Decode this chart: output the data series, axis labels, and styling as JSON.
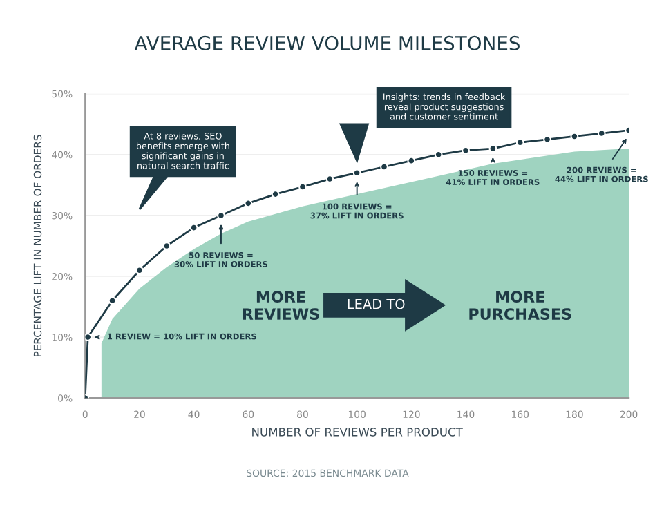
{
  "chart_data": {
    "type": "line",
    "title": "AVERAGE REVIEW VOLUME MILESTONES",
    "xlabel": "NUMBER OF REVIEWS PER PRODUCT",
    "ylabel": "PERCENTAGE LIFT IN NUMBER OF ORDERS",
    "series": [
      {
        "type": "area",
        "color": "#9fd3c0",
        "x": [
          6,
          10,
          20,
          30,
          40,
          50,
          60,
          80,
          100,
          120,
          150,
          180,
          200
        ],
        "values": [
          9,
          13,
          18,
          21.5,
          24.5,
          27,
          29,
          31.5,
          33.5,
          35.5,
          38.5,
          40.5,
          41
        ]
      },
      {
        "color": "#1e3a45",
        "marker": "circle",
        "x": [
          0,
          1,
          10,
          20,
          30,
          40,
          50,
          60,
          70,
          80,
          90,
          100,
          110,
          120,
          130,
          140,
          150,
          160,
          170,
          180,
          190,
          200
        ],
        "values": [
          0,
          10,
          16,
          21,
          25,
          28,
          30,
          32,
          33.5,
          34.7,
          36,
          37,
          38,
          39,
          40,
          40.7,
          41,
          42,
          42.5,
          43,
          43.5,
          44
        ]
      }
    ],
    "xlim": [
      0,
      200
    ],
    "xticks": [
      0,
      20,
      40,
      60,
      80,
      100,
      120,
      140,
      160,
      180,
      200
    ],
    "ylim": [
      0,
      50
    ],
    "yticks": [
      {
        "value": 0,
        "label": "0%"
      },
      {
        "value": 10,
        "label": "10%"
      },
      {
        "value": 20,
        "label": "20%"
      },
      {
        "value": 30,
        "label": "30%"
      },
      {
        "value": 40,
        "label": "40%"
      },
      {
        "value": 50,
        "label": "50%"
      }
    ],
    "grid": "y",
    "annotations": [
      {
        "text": "1 REVIEW = 10% LIFT IN ORDERS",
        "x": 1,
        "y": 10
      },
      {
        "text": "50 REVIEWS =\n30% LIFT IN ORDERS",
        "x": 50,
        "y": 30
      },
      {
        "text": "100 REVIEWS =\n37% LIFT IN ORDERS",
        "x": 100,
        "y": 37
      },
      {
        "text": "150 REVIEWS =\n41% LIFT IN ORDERS",
        "x": 150,
        "y": 41
      },
      {
        "text": "200 REVIEWS =\n44% LIFT IN ORDERS",
        "x": 200,
        "y": 44
      },
      "At 8 reviews, SEO\nbenefits emerge with\nsignificant gains in\nnatural search traffic",
      "Insights: trends in feedback\nreveal product suggestions\nand customer sentiment",
      "MORE\nREVIEWS",
      "LEAD TO",
      "MORE\nPURCHASES",
      "SOURCE: 2015 BENCHMARK DATA"
    ]
  }
}
